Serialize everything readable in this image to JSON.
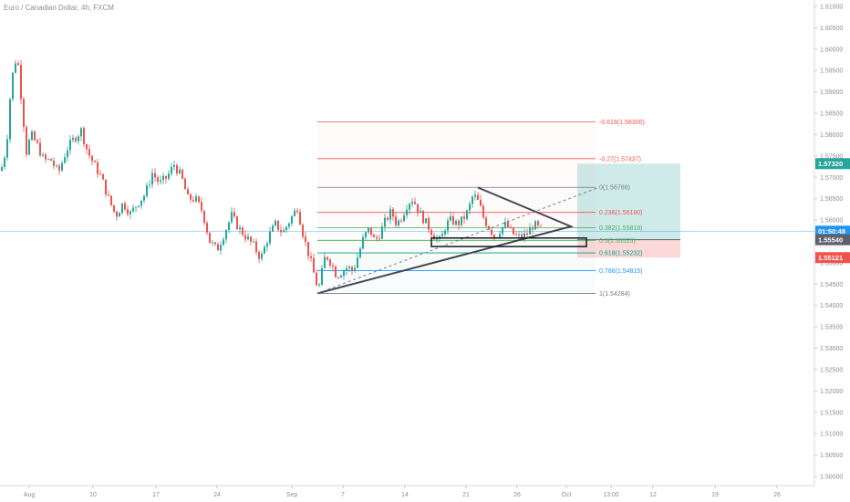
{
  "chart_data": {
    "type": "candlestick",
    "title": "Euro / Canadian Dollar, 4h, FXCM",
    "y_ticks": [
      "1.61000",
      "1.60500",
      "1.60000",
      "1.59500",
      "1.59000",
      "1.58500",
      "1.58000",
      "1.57500",
      "1.57000",
      "1.56500",
      "1.56000",
      "1.55500",
      "1.55000",
      "1.54500",
      "1.54000",
      "1.53500",
      "1.53000",
      "1.52500",
      "1.52000",
      "1.51500",
      "1.51000",
      "1.50500",
      "1.50000"
    ],
    "ylim": [
      1.498,
      1.612
    ],
    "x_ticks": [
      "Aug",
      "10",
      "17",
      "24",
      "Sep",
      "7",
      "14",
      "21",
      "28",
      "Oct",
      "13:00",
      "12",
      "19",
      "26"
    ],
    "price_tags": [
      {
        "label": "1.57320",
        "value": 1.5732,
        "color": "#26a69a"
      },
      {
        "label": "01:50:48",
        "value": 1.5574,
        "color": "#2196f3"
      },
      {
        "label": "1.55540",
        "value": 1.5554,
        "color": "#5d606b"
      },
      {
        "label": "1.55121",
        "value": 1.55121,
        "color": "#ef5350"
      }
    ],
    "fib_levels": [
      {
        "label": "-0.618(1.58300)",
        "value": 1.583,
        "color": "#ef5350"
      },
      {
        "label": "-0.27(1.57437)",
        "value": 1.57437,
        "color": "#ef5350"
      },
      {
        "label": "0(1.56766)",
        "value": 1.56766,
        "color": "#787b86"
      },
      {
        "label": "0.236(1.56180)",
        "value": 1.5618,
        "color": "#ef5350"
      },
      {
        "label": "0.382(1.55818)",
        "value": 1.55818,
        "color": "#4caf50"
      },
      {
        "label": "0.5(1.55525)",
        "value": 1.55525,
        "color": "#4caf50"
      },
      {
        "label": "0.618(1.55232)",
        "value": 1.55232,
        "color": "#089981"
      },
      {
        "label": "0.786(1.54815)",
        "value": 1.54815,
        "color": "#2196f3"
      },
      {
        "label": "1(1.54284)",
        "value": 1.54284,
        "color": "#787b86"
      }
    ],
    "anchors": [
      {
        "x": 0,
        "y": 1.5715
      },
      {
        "x": 6,
        "y": 1.577
      },
      {
        "x": 10,
        "y": 1.5885
      },
      {
        "x": 14,
        "y": 1.596
      },
      {
        "x": 18,
        "y": 1.5985
      },
      {
        "x": 23,
        "y": 1.587
      },
      {
        "x": 28,
        "y": 1.576
      },
      {
        "x": 33,
        "y": 1.58
      },
      {
        "x": 40,
        "y": 1.5775
      },
      {
        "x": 47,
        "y": 1.574
      },
      {
        "x": 55,
        "y": 1.574
      },
      {
        "x": 63,
        "y": 1.571
      },
      {
        "x": 72,
        "y": 1.5765
      },
      {
        "x": 80,
        "y": 1.579
      },
      {
        "x": 88,
        "y": 1.581
      },
      {
        "x": 95,
        "y": 1.576
      },
      {
        "x": 102,
        "y": 1.573
      },
      {
        "x": 110,
        "y": 1.57
      },
      {
        "x": 118,
        "y": 1.565
      },
      {
        "x": 126,
        "y": 1.561
      },
      {
        "x": 134,
        "y": 1.564
      },
      {
        "x": 142,
        "y": 1.5615
      },
      {
        "x": 150,
        "y": 1.564
      },
      {
        "x": 158,
        "y": 1.566
      },
      {
        "x": 166,
        "y": 1.571
      },
      {
        "x": 174,
        "y": 1.5685
      },
      {
        "x": 182,
        "y": 1.57
      },
      {
        "x": 190,
        "y": 1.573
      },
      {
        "x": 198,
        "y": 1.57
      },
      {
        "x": 205,
        "y": 1.565
      },
      {
        "x": 213,
        "y": 1.565
      },
      {
        "x": 221,
        "y": 1.562
      },
      {
        "x": 229,
        "y": 1.555
      },
      {
        "x": 237,
        "y": 1.553
      },
      {
        "x": 245,
        "y": 1.557
      },
      {
        "x": 253,
        "y": 1.561
      },
      {
        "x": 261,
        "y": 1.558
      },
      {
        "x": 269,
        "y": 1.556
      },
      {
        "x": 277,
        "y": 1.554
      },
      {
        "x": 285,
        "y": 1.551
      },
      {
        "x": 293,
        "y": 1.556
      },
      {
        "x": 301,
        "y": 1.559
      },
      {
        "x": 309,
        "y": 1.557
      },
      {
        "x": 317,
        "y": 1.56
      },
      {
        "x": 325,
        "y": 1.563
      },
      {
        "x": 332,
        "y": 1.556
      },
      {
        "x": 340,
        "y": 1.55
      },
      {
        "x": 348,
        "y": 1.5435
      },
      {
        "x": 356,
        "y": 1.552
      },
      {
        "x": 362,
        "y": 1.55
      },
      {
        "x": 368,
        "y": 1.547
      },
      {
        "x": 374,
        "y": 1.548
      },
      {
        "x": 380,
        "y": 1.549
      },
      {
        "x": 386,
        "y": 1.548
      },
      {
        "x": 392,
        "y": 1.552
      },
      {
        "x": 398,
        "y": 1.556
      },
      {
        "x": 404,
        "y": 1.558
      },
      {
        "x": 410,
        "y": 1.555
      },
      {
        "x": 416,
        "y": 1.557
      },
      {
        "x": 422,
        "y": 1.56
      },
      {
        "x": 428,
        "y": 1.562
      },
      {
        "x": 434,
        "y": 1.559
      },
      {
        "x": 440,
        "y": 1.561
      },
      {
        "x": 446,
        "y": 1.564
      },
      {
        "x": 452,
        "y": 1.565
      },
      {
        "x": 458,
        "y": 1.562
      },
      {
        "x": 464,
        "y": 1.56
      },
      {
        "x": 470,
        "y": 1.558
      },
      {
        "x": 476,
        "y": 1.556
      },
      {
        "x": 482,
        "y": 1.555
      },
      {
        "x": 488,
        "y": 1.559
      },
      {
        "x": 494,
        "y": 1.56
      },
      {
        "x": 500,
        "y": 1.559
      },
      {
        "x": 506,
        "y": 1.56
      },
      {
        "x": 512,
        "y": 1.562
      },
      {
        "x": 518,
        "y": 1.566
      },
      {
        "x": 524,
        "y": 1.564
      },
      {
        "x": 530,
        "y": 1.56
      },
      {
        "x": 536,
        "y": 1.558
      },
      {
        "x": 542,
        "y": 1.556
      },
      {
        "x": 548,
        "y": 1.558
      },
      {
        "x": 554,
        "y": 1.559
      },
      {
        "x": 560,
        "y": 1.557
      },
      {
        "x": 566,
        "y": 1.556
      },
      {
        "x": 572,
        "y": 1.556
      },
      {
        "x": 578,
        "y": 1.557
      },
      {
        "x": 584,
        "y": 1.559
      },
      {
        "x": 590,
        "y": 1.558
      },
      {
        "x": 594,
        "y": 1.5575
      }
    ]
  }
}
